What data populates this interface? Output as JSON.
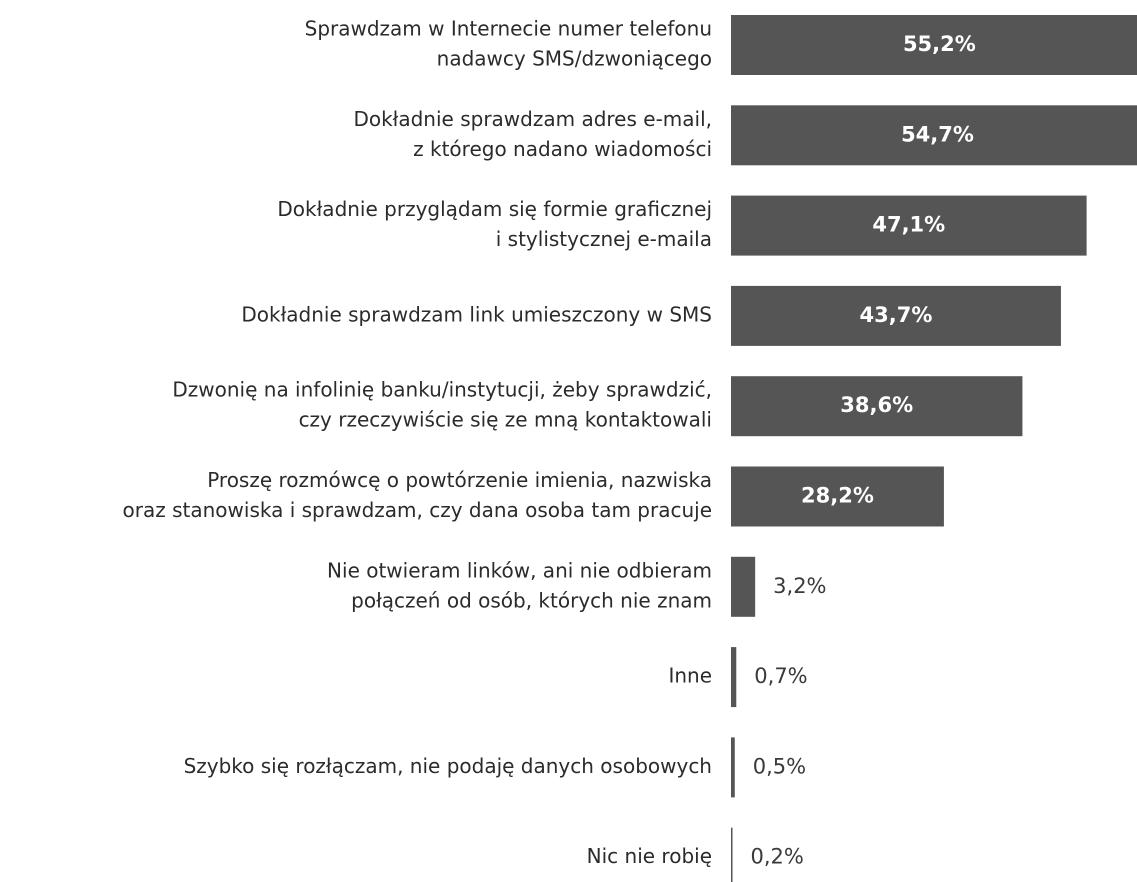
{
  "chart_data": {
    "type": "bar",
    "orientation": "horizontal",
    "color": "#555555",
    "categories": [
      [
        "Sprawdzam w Internecie numer telefonu",
        "nadawcy SMS/dzwoniącego"
      ],
      [
        "Dokładnie sprawdzam adres e-mail,",
        "z którego nadano wiadomości"
      ],
      [
        "Dokładnie przyglądam się formie graficznej",
        "i stylistycznej e-maila"
      ],
      [
        "Dokładnie sprawdzam link umieszczony w SMS"
      ],
      [
        "Dzwonię na infolinię banku/instytucji, żeby sprawdzić,",
        "czy rzeczywiście się ze mną kontaktowali"
      ],
      [
        "Proszę rozmówcę o powtórzenie imienia, nazwiska",
        "oraz stanowiska i sprawdzam, czy dana osoba tam pracuje"
      ],
      [
        "Nie otwieram linków, ani nie odbieram",
        "połączeń od osób, których nie znam"
      ],
      [
        "Inne"
      ],
      [
        "Szybko się rozłączam, nie podaję danych osobowych"
      ],
      [
        "Nic nie robię"
      ]
    ],
    "values": [
      55.2,
      54.7,
      47.1,
      43.7,
      38.6,
      28.2,
      3.2,
      0.7,
      0.5,
      0.2
    ],
    "value_labels": [
      "55,2%",
      "54,7%",
      "47,1%",
      "43,7%",
      "38,6%",
      "28,2%",
      "3,2%",
      "0,7%",
      "0,5%",
      "0,2%"
    ]
  }
}
